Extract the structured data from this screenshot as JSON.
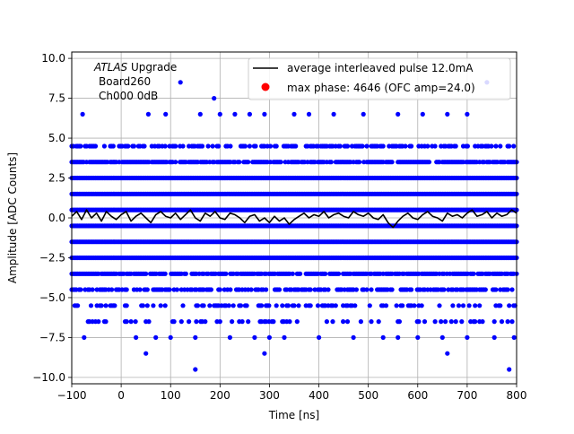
{
  "chart_data": {
    "type": "scatter",
    "xlabel": "Time [ns]",
    "ylabel": "Amplitude [ADC Counts]",
    "xlim": [
      -100,
      800
    ],
    "ylim": [
      -10.4,
      10.4
    ],
    "grid": true,
    "legend_placement": "top-right",
    "x_ticks": [
      -100,
      0,
      100,
      200,
      300,
      400,
      500,
      600,
      700,
      800
    ],
    "x_tick_labels": [
      "−100",
      "0",
      "100",
      "200",
      "300",
      "400",
      "500",
      "600",
      "700",
      "800"
    ],
    "y_ticks": [
      10.0,
      7.5,
      5.0,
      2.5,
      0.0,
      -2.5,
      -5.0,
      -7.5,
      -10.0
    ],
    "y_tick_labels": [
      "10.0",
      "7.5",
      "5.0",
      "2.5",
      "0.0",
      "−2.5",
      "−5.0",
      "−7.5",
      "−10.0"
    ],
    "annotation": {
      "experiment": "ATLAS",
      "experiment_suffix": " Upgrade",
      "board": "Board260",
      "channel": "Ch000 0dB"
    },
    "series": [
      {
        "name": "average interleaved pulse 12.0mA",
        "kind": "line",
        "color": "#000000",
        "x": [
          -100,
          -90,
          -80,
          -70,
          -60,
          -50,
          -40,
          -30,
          -20,
          -10,
          0,
          10,
          20,
          30,
          40,
          50,
          60,
          70,
          80,
          90,
          100,
          110,
          120,
          130,
          140,
          150,
          160,
          170,
          180,
          190,
          200,
          210,
          220,
          230,
          240,
          250,
          260,
          270,
          280,
          290,
          300,
          310,
          320,
          330,
          340,
          350,
          360,
          370,
          380,
          390,
          400,
          410,
          420,
          430,
          440,
          450,
          460,
          470,
          480,
          490,
          500,
          510,
          520,
          530,
          540,
          550,
          560,
          570,
          580,
          590,
          600,
          610,
          620,
          630,
          640,
          650,
          660,
          670,
          680,
          690,
          700,
          710,
          720,
          730,
          740,
          750,
          760,
          770,
          780,
          790,
          800
        ],
        "y": [
          0.1,
          0.4,
          -0.1,
          0.5,
          0.0,
          0.3,
          -0.2,
          0.4,
          0.1,
          -0.1,
          0.2,
          0.4,
          -0.2,
          0.1,
          0.3,
          0.0,
          -0.3,
          0.2,
          0.4,
          0.1,
          0.0,
          0.3,
          -0.1,
          0.2,
          0.5,
          0.0,
          -0.2,
          0.3,
          0.1,
          0.4,
          0.0,
          -0.1,
          0.3,
          0.2,
          0.0,
          -0.3,
          0.1,
          0.2,
          -0.2,
          0.0,
          -0.3,
          0.1,
          -0.2,
          0.0,
          -0.4,
          -0.1,
          0.1,
          0.3,
          0.0,
          0.2,
          0.1,
          0.4,
          0.0,
          0.2,
          0.3,
          0.1,
          0.0,
          0.4,
          0.2,
          0.1,
          0.3,
          0.0,
          -0.1,
          0.2,
          -0.3,
          -0.6,
          -0.2,
          0.1,
          0.3,
          0.0,
          -0.1,
          0.2,
          0.4,
          0.1,
          0.0,
          -0.2,
          0.3,
          0.1,
          0.2,
          0.0,
          0.3,
          0.5,
          0.1,
          0.2,
          0.4,
          0.0,
          0.3,
          0.1,
          0.2,
          0.5,
          0.3
        ]
      },
      {
        "name": "max phase: 4646 (OFC amp=24.0)",
        "kind": "points",
        "color": "#0000ff",
        "dense_levels": [
          4.5,
          3.5,
          2.5,
          1.5,
          0.5,
          -0.5,
          -1.5,
          -2.5,
          -3.5,
          -4.5,
          -5.5,
          -6.5
        ],
        "outliers": [
          {
            "x": 120,
            "y": 8.5
          },
          {
            "x": 188,
            "y": 7.5
          },
          {
            "x": 740,
            "y": 8.5
          },
          {
            "x": -78,
            "y": 6.5
          },
          {
            "x": 55,
            "y": 6.5
          },
          {
            "x": 90,
            "y": 6.5
          },
          {
            "x": 160,
            "y": 6.5
          },
          {
            "x": 200,
            "y": 6.5
          },
          {
            "x": 230,
            "y": 6.5
          },
          {
            "x": 260,
            "y": 6.5
          },
          {
            "x": 290,
            "y": 6.5
          },
          {
            "x": 350,
            "y": 6.5
          },
          {
            "x": 380,
            "y": 6.5
          },
          {
            "x": 430,
            "y": 6.5
          },
          {
            "x": 490,
            "y": 6.5
          },
          {
            "x": 560,
            "y": 6.5
          },
          {
            "x": 610,
            "y": 6.5
          },
          {
            "x": 660,
            "y": 6.5
          },
          {
            "x": 700,
            "y": 6.5
          },
          {
            "x": -75,
            "y": -7.5
          },
          {
            "x": 30,
            "y": -7.5
          },
          {
            "x": 70,
            "y": -7.5
          },
          {
            "x": 100,
            "y": -7.5
          },
          {
            "x": 150,
            "y": -7.5
          },
          {
            "x": 220,
            "y": -7.5
          },
          {
            "x": 270,
            "y": -7.5
          },
          {
            "x": 300,
            "y": -7.5
          },
          {
            "x": 330,
            "y": -7.5
          },
          {
            "x": 400,
            "y": -7.5
          },
          {
            "x": 470,
            "y": -7.5
          },
          {
            "x": 530,
            "y": -7.5
          },
          {
            "x": 560,
            "y": -7.5
          },
          {
            "x": 600,
            "y": -7.5
          },
          {
            "x": 650,
            "y": -7.5
          },
          {
            "x": 700,
            "y": -7.5
          },
          {
            "x": 755,
            "y": -7.5
          },
          {
            "x": 795,
            "y": -7.5
          },
          {
            "x": 50,
            "y": -8.5
          },
          {
            "x": 290,
            "y": -8.5
          },
          {
            "x": 660,
            "y": -8.5
          },
          {
            "x": 150,
            "y": -9.5
          },
          {
            "x": 785,
            "y": -9.5
          }
        ]
      }
    ]
  }
}
